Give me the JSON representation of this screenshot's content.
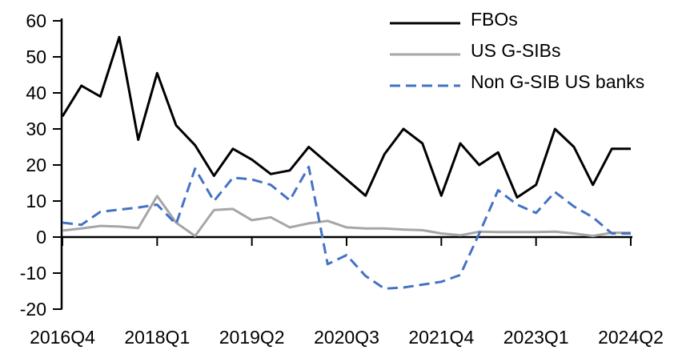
{
  "chart_data": {
    "type": "line",
    "title": "",
    "xlabel": "",
    "ylabel": "",
    "grid": false,
    "legend_position": "top-right",
    "ylim": [
      -20,
      60
    ],
    "y_ticks": [
      60,
      50,
      40,
      30,
      20,
      10,
      0,
      -10,
      -20
    ],
    "x_tick_step": 5,
    "x_axis_tick_labels": [
      "2016Q4",
      "2018Q1",
      "2019Q2",
      "2020Q3",
      "2021Q4",
      "2023Q1",
      "2024Q2"
    ],
    "x_categories": [
      "2016Q4",
      "2017Q1",
      "2017Q2",
      "2017Q3",
      "2017Q4",
      "2018Q1",
      "2018Q2",
      "2018Q3",
      "2018Q4",
      "2019Q1",
      "2019Q2",
      "2019Q3",
      "2019Q4",
      "2020Q1",
      "2020Q2",
      "2020Q3",
      "2020Q4",
      "2021Q1",
      "2021Q2",
      "2021Q3",
      "2021Q4",
      "2022Q1",
      "2022Q2",
      "2022Q3",
      "2022Q4",
      "2023Q1",
      "2023Q2",
      "2023Q3",
      "2023Q4",
      "2024Q1",
      "2024Q2"
    ],
    "series": [
      {
        "name": "FBOs",
        "color": "#000000",
        "dash": null,
        "values": [
          33.5,
          42,
          39,
          55.5,
          27,
          45.5,
          31,
          25.5,
          17,
          24.5,
          21.5,
          17.5,
          18.5,
          25,
          20.5,
          16,
          11.5,
          23,
          30,
          26,
          11.5,
          26,
          20,
          23.5,
          11,
          14.5,
          30,
          25,
          14.5,
          24.5,
          24.5
        ]
      },
      {
        "name": "US G-SIBs",
        "color": "#A6A6A6",
        "dash": null,
        "values": [
          1.8,
          2.4,
          3.1,
          2.9,
          2.5,
          11.4,
          4,
          0.3,
          7.5,
          7.8,
          4.7,
          5.5,
          2.7,
          3.8,
          4.5,
          2.7,
          2.4,
          2.4,
          2.1,
          1.9,
          1,
          0.5,
          1.5,
          1.4,
          1.4,
          1.4,
          1.5,
          1,
          0.3,
          1.2,
          1.2
        ]
      },
      {
        "name": "Non G-SIB US banks",
        "color": "#4472C4",
        "dash": "13 7",
        "values": [
          4,
          3.4,
          7,
          7.6,
          8.2,
          9,
          3.6,
          19,
          10,
          16.5,
          16,
          14.5,
          10.2,
          19.5,
          -7.5,
          -5,
          -10.8,
          -14.3,
          -14,
          -13.2,
          -12.4,
          -10.5,
          1,
          13,
          9,
          6.7,
          12.5,
          8.5,
          5.5,
          1,
          1
        ]
      }
    ]
  }
}
